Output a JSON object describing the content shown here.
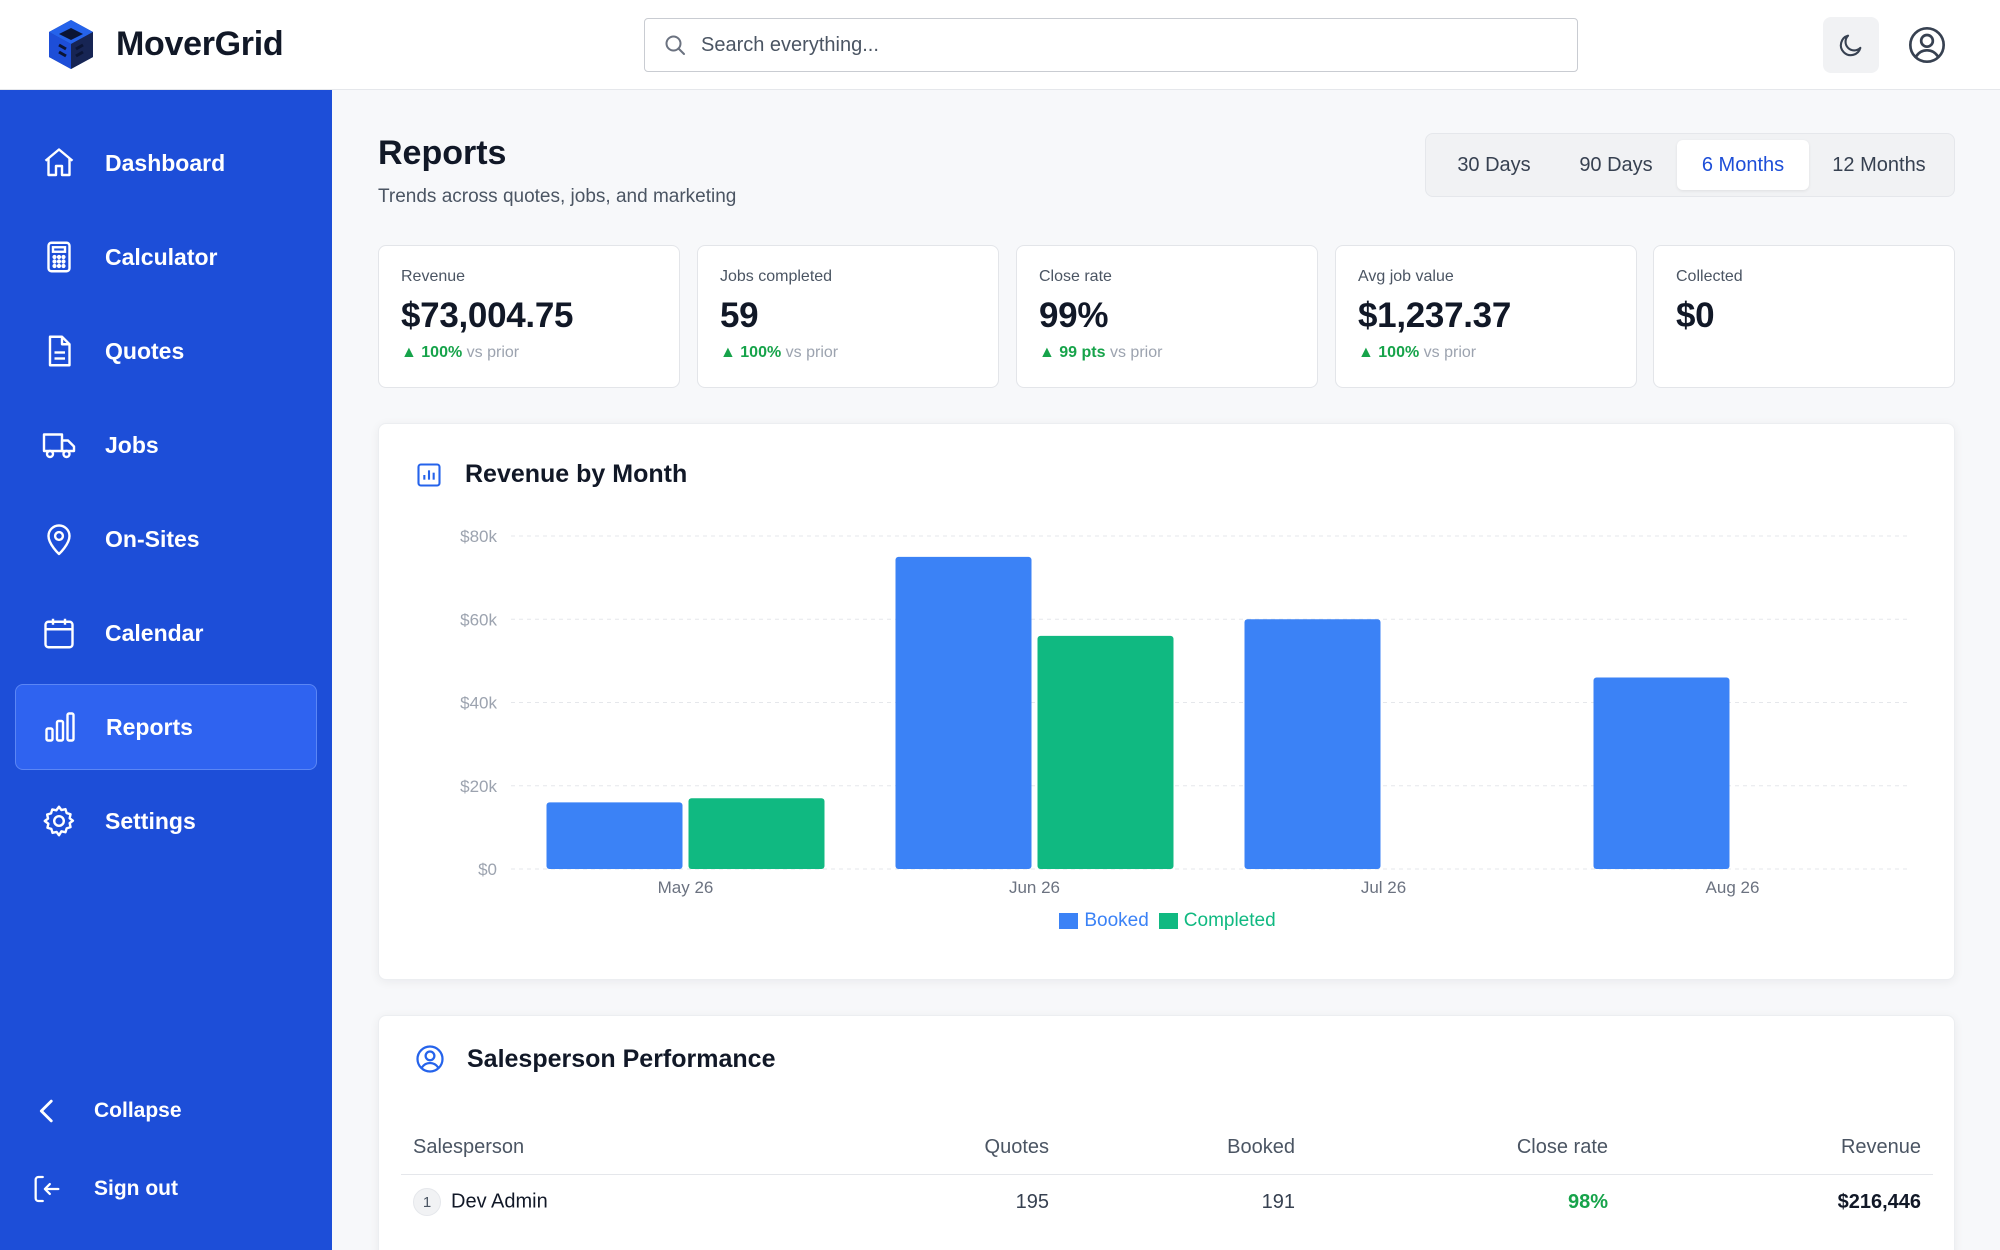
{
  "app": {
    "name": "MoverGrid"
  },
  "search": {
    "placeholder": "Search everything..."
  },
  "sidebar": {
    "items": [
      {
        "label": "Dashboard",
        "icon": "home-icon"
      },
      {
        "label": "Calculator",
        "icon": "calculator-icon"
      },
      {
        "label": "Quotes",
        "icon": "document-icon"
      },
      {
        "label": "Jobs",
        "icon": "truck-icon"
      },
      {
        "label": "On-Sites",
        "icon": "map-pin-icon"
      },
      {
        "label": "Calendar",
        "icon": "calendar-icon"
      },
      {
        "label": "Reports",
        "icon": "bar-chart-icon",
        "active": true
      },
      {
        "label": "Settings",
        "icon": "gear-icon"
      }
    ],
    "collapse_label": "Collapse",
    "signout_label": "Sign out"
  },
  "page": {
    "title": "Reports",
    "subtitle": "Trends across quotes, jobs, and marketing"
  },
  "ranges": {
    "options": [
      "30 Days",
      "90 Days",
      "6 Months",
      "12 Months"
    ],
    "selected": "6 Months"
  },
  "kpis": [
    {
      "label": "Revenue",
      "value": "$73,004.75",
      "delta": "100%",
      "delta_suffix": "vs prior"
    },
    {
      "label": "Jobs completed",
      "value": "59",
      "delta": "100%",
      "delta_suffix": "vs prior"
    },
    {
      "label": "Close rate",
      "value": "99%",
      "delta": "99 pts",
      "delta_suffix": "vs prior"
    },
    {
      "label": "Avg job value",
      "value": "$1,237.37",
      "delta": "100%",
      "delta_suffix": "vs prior"
    },
    {
      "label": "Collected",
      "value": "$0"
    }
  ],
  "revenue_card": {
    "title": "Revenue by Month"
  },
  "chart_data": {
    "type": "bar",
    "title": "Revenue by Month",
    "categories": [
      "May 26",
      "Jun 26",
      "Jul 26",
      "Aug 26"
    ],
    "series": [
      {
        "name": "Booked",
        "color": "#3b82f6",
        "values": [
          16000,
          75000,
          60000,
          46000
        ]
      },
      {
        "name": "Completed",
        "color": "#10b981",
        "values": [
          17000,
          56000,
          0,
          0
        ]
      }
    ],
    "yticks": [
      "$0",
      "$20k",
      "$40k",
      "$60k",
      "$80k"
    ],
    "ylim": [
      0,
      80000
    ],
    "grid": true,
    "legend": "bottom-center"
  },
  "sales_card": {
    "title": "Salesperson Performance",
    "columns": [
      "Salesperson",
      "Quotes",
      "Booked",
      "Close rate",
      "Revenue"
    ],
    "rows": [
      {
        "rank": "1",
        "name": "Dev Admin",
        "quotes": "195",
        "booked": "191",
        "close_rate": "98%",
        "revenue": "$216,446"
      }
    ]
  }
}
